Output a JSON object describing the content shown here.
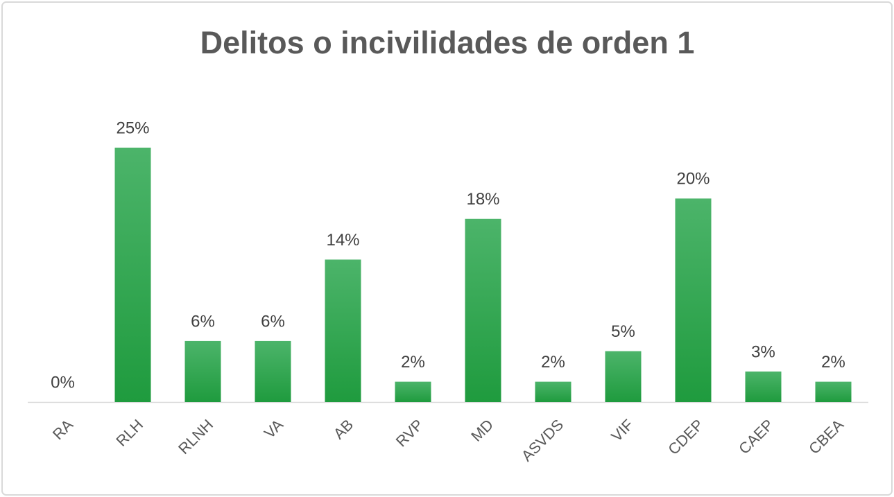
{
  "chart_data": {
    "type": "bar",
    "title": "Delitos o incivilidades de orden 1",
    "categories": [
      "RA",
      "RLH",
      "RLNH",
      "VA",
      "AB",
      "RVP",
      "MD",
      "ASVDS",
      "VIF",
      "CDEP",
      "CAEP",
      "CBEA"
    ],
    "values": [
      0,
      25,
      6,
      6,
      14,
      2,
      18,
      2,
      5,
      20,
      3,
      2
    ],
    "value_labels": [
      "0%",
      "25%",
      "6%",
      "6%",
      "14%",
      "2%",
      "18%",
      "2%",
      "5%",
      "20%",
      "3%",
      "2%"
    ],
    "color": "#2ea84c"
  }
}
